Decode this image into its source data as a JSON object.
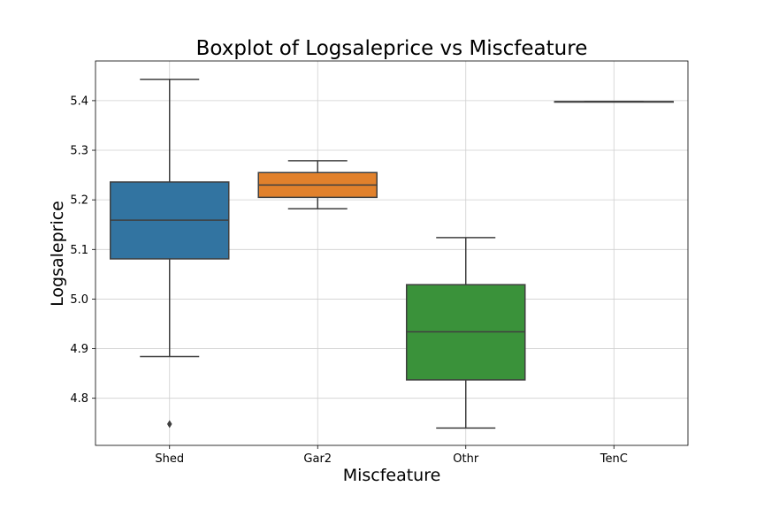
{
  "chart_data": {
    "type": "boxplot",
    "title": "Boxplot of Logsaleprice vs Miscfeature",
    "xlabel": "Miscfeature",
    "ylabel": "Logsaleprice",
    "ylim": [
      4.705,
      5.48
    ],
    "yticks": [
      4.8,
      4.9,
      5.0,
      5.1,
      5.2,
      5.3,
      5.4
    ],
    "grid": true,
    "categories": [
      "Shed",
      "Gar2",
      "Othr",
      "TenC"
    ],
    "boxes": [
      {
        "category": "Shed",
        "whisker_low": 4.884,
        "q1": 5.081,
        "median": 5.159,
        "q3": 5.236,
        "whisker_high": 5.443,
        "outliers": [
          4.748
        ],
        "color": "#3274a1"
      },
      {
        "category": "Gar2",
        "whisker_low": 5.182,
        "q1": 5.205,
        "median": 5.23,
        "q3": 5.255,
        "whisker_high": 5.279,
        "outliers": [],
        "color": "#e1812c"
      },
      {
        "category": "Othr",
        "whisker_low": 4.74,
        "q1": 4.837,
        "median": 4.934,
        "q3": 5.029,
        "whisker_high": 5.124,
        "outliers": [],
        "color": "#3a923a"
      },
      {
        "category": "TenC",
        "whisker_low": 5.398,
        "q1": 5.398,
        "median": 5.398,
        "q3": 5.398,
        "whisker_high": 5.398,
        "outliers": [],
        "color": "#c03d3e"
      }
    ]
  }
}
